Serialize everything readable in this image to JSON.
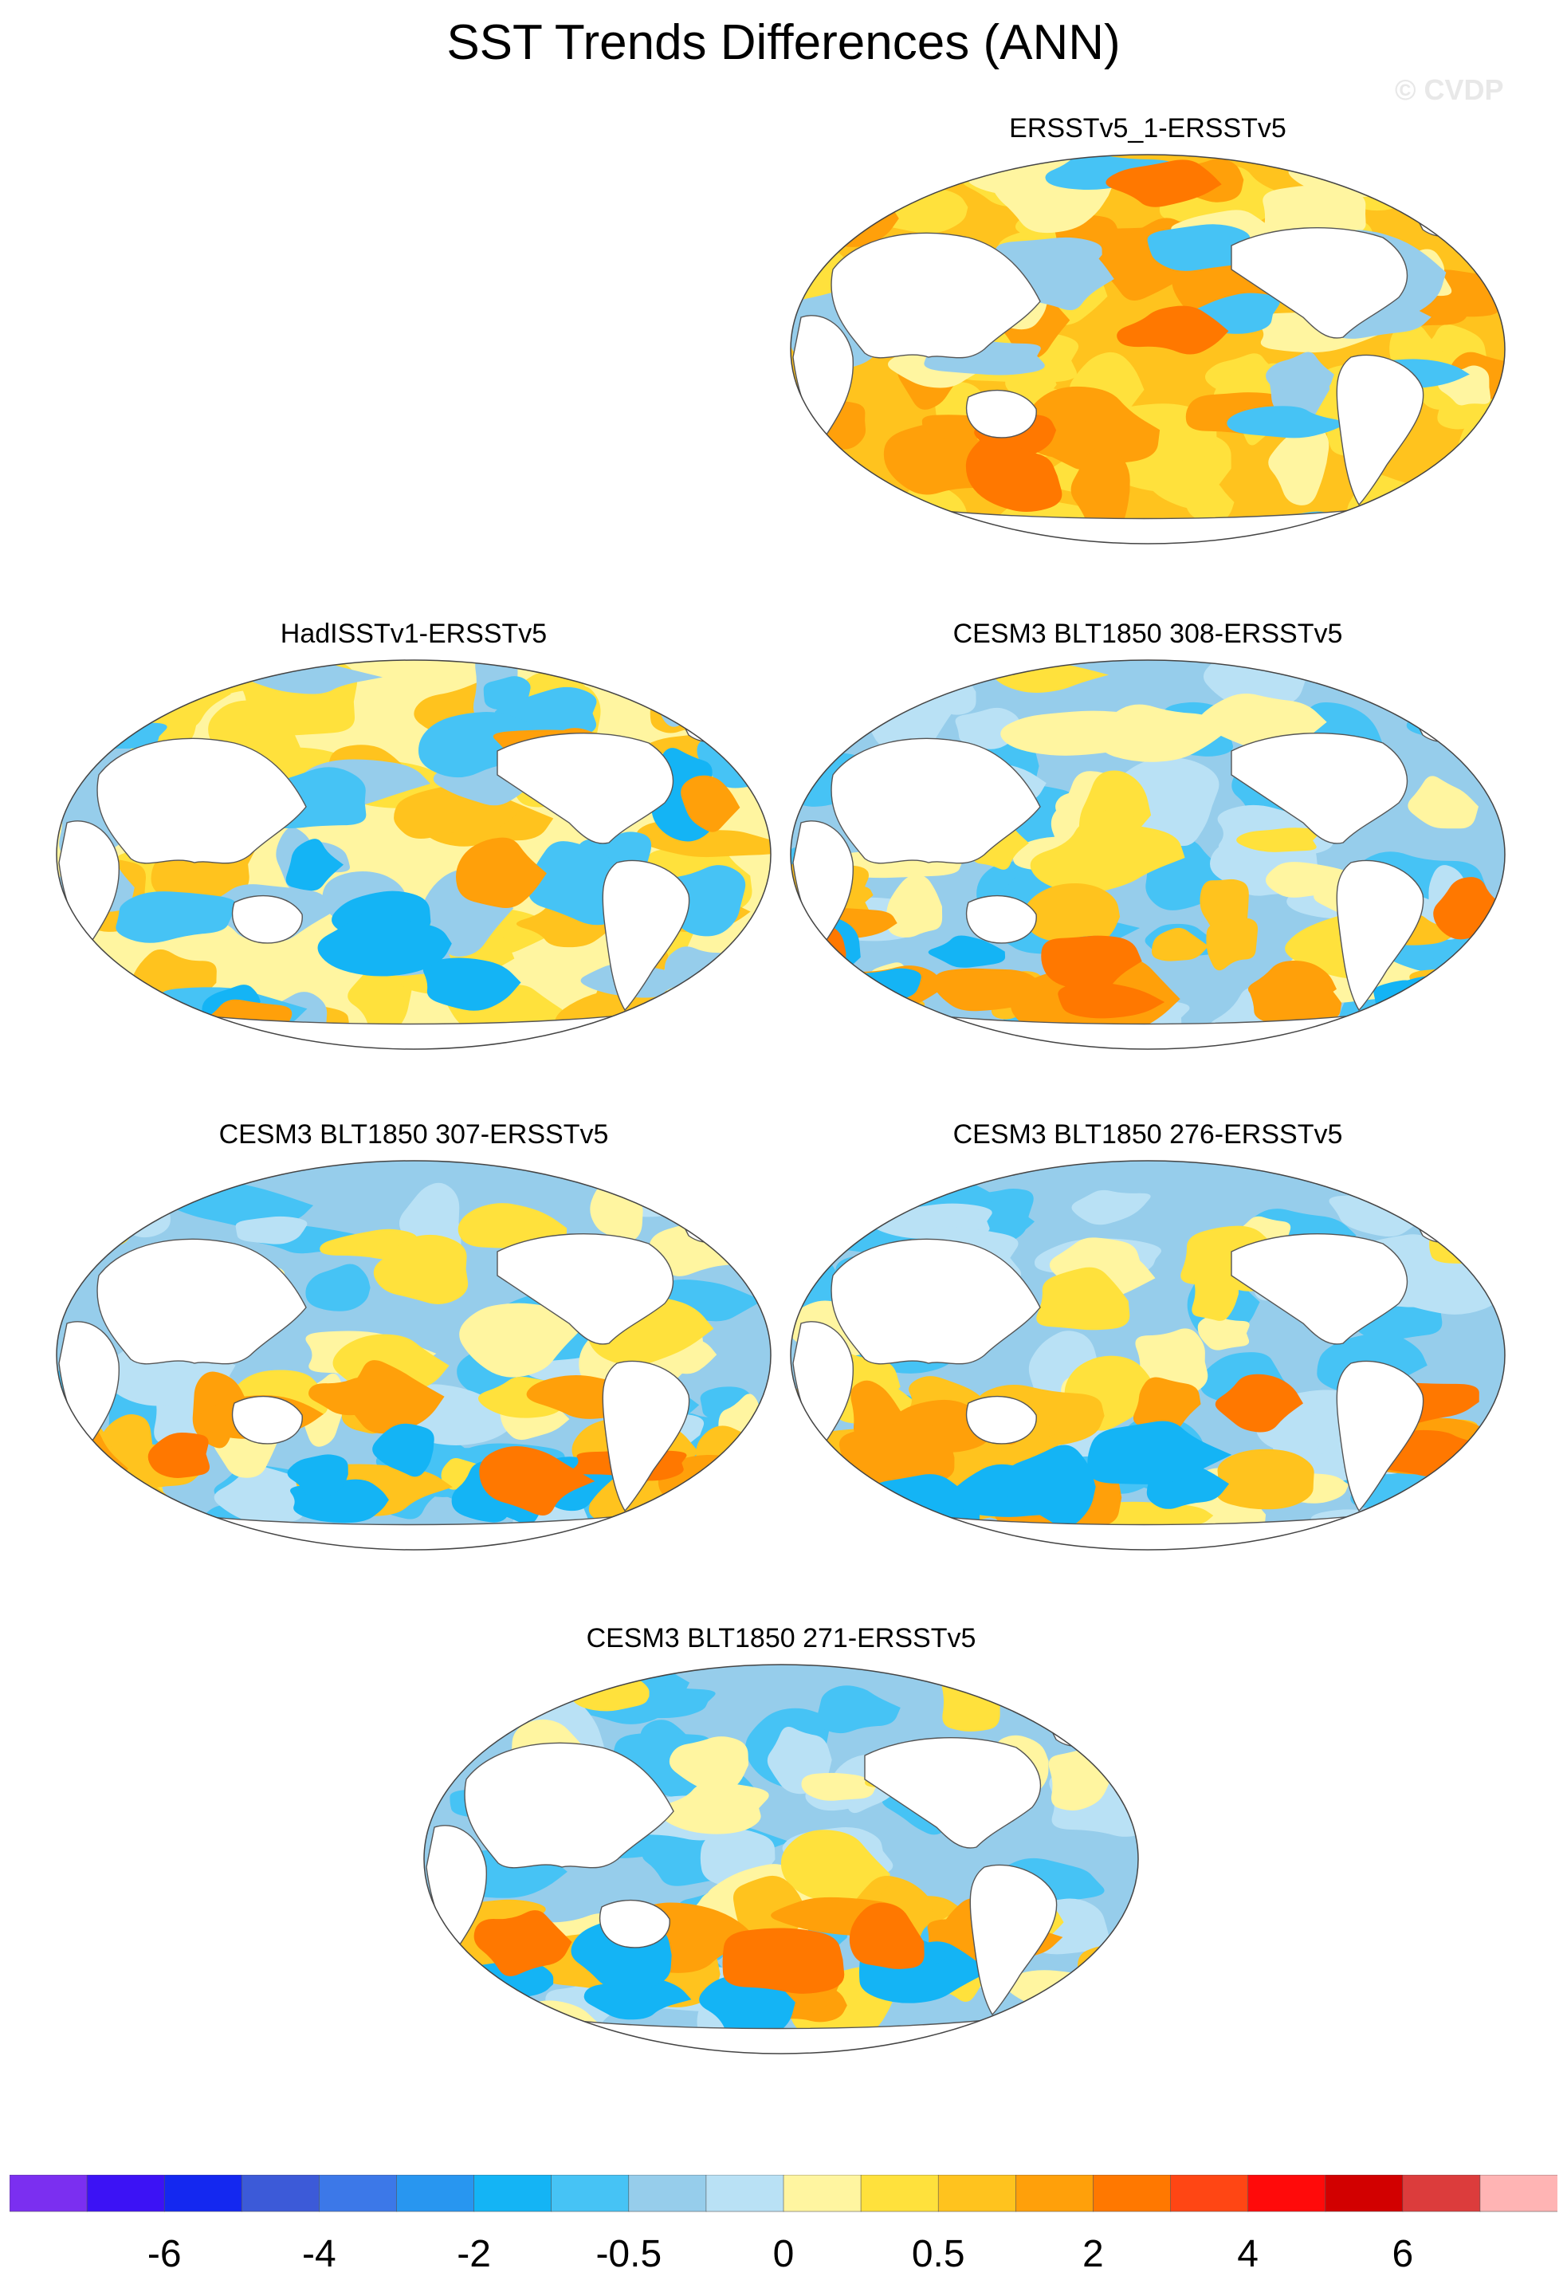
{
  "title": "SST Trends Differences (ANN)",
  "watermark": "© CVDP",
  "panels": [
    {
      "title": "ERSSTv5_1-ERSSTv5",
      "pattern": "warm"
    },
    {
      "title": "HadISSTv1-ERSSTv5",
      "pattern": "mixed"
    },
    {
      "title": "CESM3 BLT1850 308-ERSSTv5",
      "pattern": "cool-south-warm"
    },
    {
      "title": "CESM3 BLT1850 307-ERSSTv5",
      "pattern": "cool-south-warm"
    },
    {
      "title": "CESM3 BLT1850 276-ERSSTv5",
      "pattern": "cool-south-warm"
    },
    {
      "title": "CESM3 BLT1850 271-ERSSTv5",
      "pattern": "cool-south-warm"
    }
  ],
  "colorbar": {
    "colors": [
      "#7b2ff0",
      "#3c12f5",
      "#1428f0",
      "#3c5ad8",
      "#3c78e8",
      "#2896f0",
      "#14b4f5",
      "#46c3f5",
      "#96cdeb",
      "#b9e1f5",
      "#fff5a0",
      "#ffe13c",
      "#ffc31e",
      "#ffa00a",
      "#ff7800",
      "#ff4614",
      "#ff0a0a",
      "#d20000",
      "#dc3c3c",
      "#ffb4b4"
    ],
    "tick_labels": [
      "-6",
      "-4",
      "-2",
      "-0.5",
      "0",
      "0.5",
      "2",
      "4",
      "6"
    ]
  }
}
